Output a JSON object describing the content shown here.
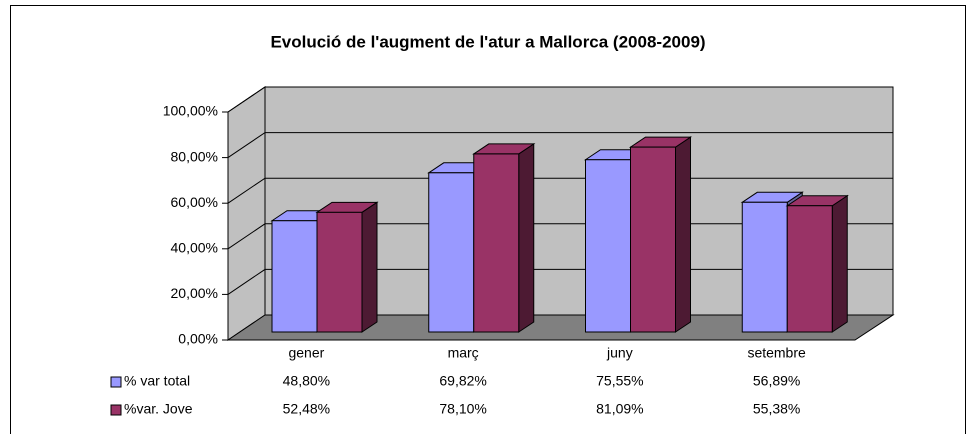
{
  "chart_data": {
    "type": "bar3d",
    "title": "Evolució de l'augment de l'atur a Mallorca (2008-2009)",
    "categories": [
      "gener",
      "març",
      "juny",
      "setembre"
    ],
    "series": [
      {
        "name": "% var total",
        "color": "#9999ff",
        "values": [
          48.8,
          69.82,
          75.55,
          56.89
        ],
        "value_labels": [
          "48,80%",
          "69,82%",
          "75,55%",
          "56,89%"
        ]
      },
      {
        "name": "%var. Jove",
        "color": "#993366",
        "values": [
          52.48,
          78.1,
          81.09,
          55.38
        ],
        "value_labels": [
          "52,48%",
          "78,10%",
          "81,09%",
          "55,38%"
        ]
      }
    ],
    "ylim": [
      0,
      100
    ],
    "yticks": [
      {
        "value": 0,
        "label": "0,00%"
      },
      {
        "value": 20,
        "label": "20,00%"
      },
      {
        "value": 40,
        "label": "40,00%"
      },
      {
        "value": 60,
        "label": "60,00%"
      },
      {
        "value": 80,
        "label": "80,00%"
      },
      {
        "value": 100,
        "label": "100,00%"
      }
    ],
    "grid": true
  }
}
